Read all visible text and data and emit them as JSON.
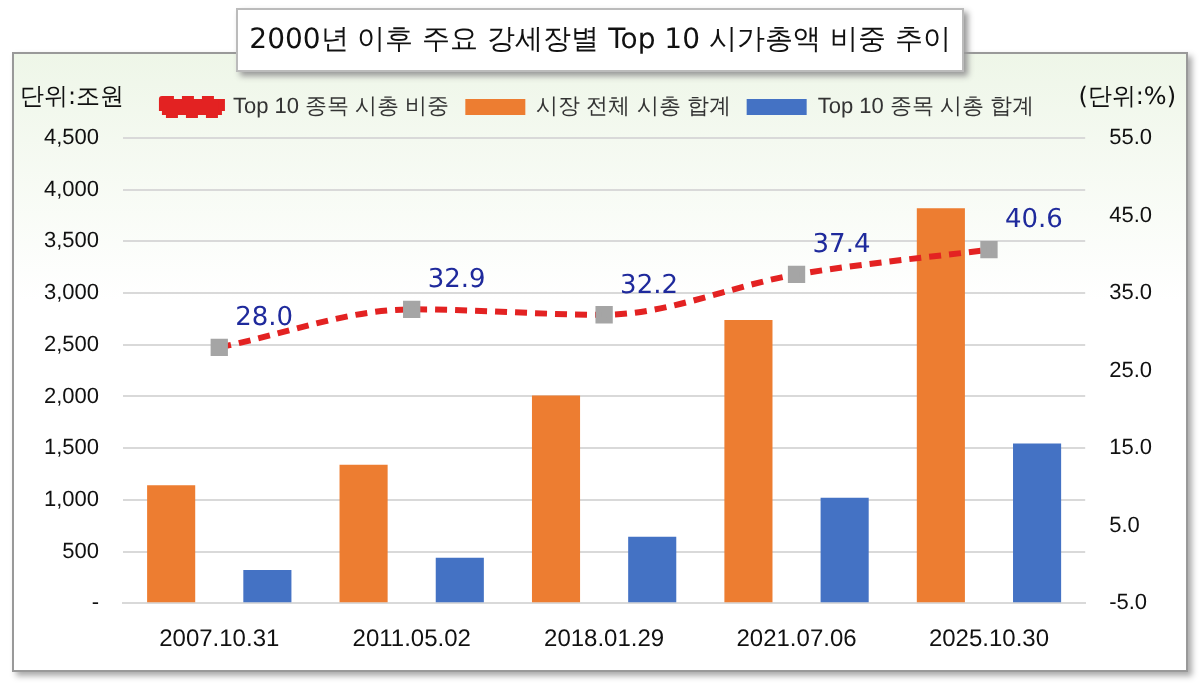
{
  "chart_data": {
    "type": "bar",
    "title": "2000년 이후 주요 강세장별 Top 10 시가총액 비중 추이",
    "ylabel": "단위:조원",
    "y2label": "(단위:%)",
    "categories": [
      "2007.10.31",
      "2011.05.02",
      "2018.01.29",
      "2021.07.06",
      "2025.10.30"
    ],
    "series": [
      {
        "name": "시장 전체 시총 합계",
        "color": "#ed7d31",
        "values": [
          1140,
          1340,
          2010,
          2740,
          3820
        ]
      },
      {
        "name": "Top 10 종목 시총 합계",
        "color": "#4472c4",
        "values": [
          320,
          440,
          644,
          1020,
          1546
        ]
      },
      {
        "name": "Top 10 종목 시총 비중",
        "type": "line",
        "axis": "y2",
        "color": "#e32222",
        "line_style": "dashed",
        "marker": "square",
        "values": [
          28.0,
          32.9,
          32.2,
          37.4,
          40.6
        ],
        "value_labels": [
          "28.0",
          "32.9",
          "32.2",
          "37.4",
          "40.6"
        ]
      }
    ],
    "ylim": [
      0,
      4500
    ],
    "yticks": [
      {
        "value": 0,
        "label": "-"
      },
      {
        "value": 500,
        "label": "500"
      },
      {
        "value": 1000,
        "label": "1,000"
      },
      {
        "value": 1500,
        "label": "1,500"
      },
      {
        "value": 2000,
        "label": "2,000"
      },
      {
        "value": 2500,
        "label": "2,500"
      },
      {
        "value": 3000,
        "label": "3,000"
      },
      {
        "value": 3500,
        "label": "3,500"
      },
      {
        "value": 4000,
        "label": "4,000"
      },
      {
        "value": 4500,
        "label": "4,500"
      }
    ],
    "y2lim": [
      -5,
      55
    ],
    "y2ticks": [
      {
        "value": -5,
        "label": "-5.0"
      },
      {
        "value": 5,
        "label": "5.0"
      },
      {
        "value": 15,
        "label": "15.0"
      },
      {
        "value": 25,
        "label": "25.0"
      },
      {
        "value": 35,
        "label": "35.0"
      },
      {
        "value": 45,
        "label": "45.0"
      },
      {
        "value": 55,
        "label": "55.0"
      }
    ],
    "grid": "y",
    "legend": "top"
  }
}
